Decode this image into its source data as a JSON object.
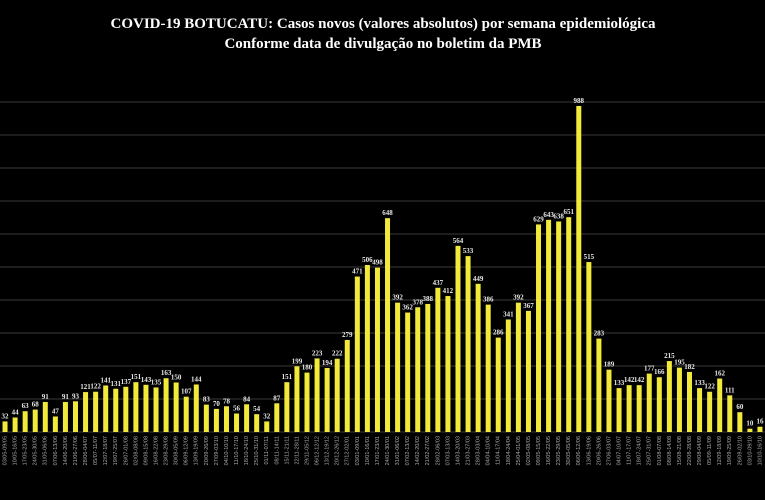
{
  "chart_data": {
    "type": "bar",
    "title": "COVID-19 BOTUCATU: Casos novos (valores absolutos) por semana epidemiológica",
    "subtitle": "Conforme data de divulgação no boletim da PMB",
    "categories": [
      "03/05-09/05",
      "10/05-16/05",
      "17/05-23/05",
      "24/05-30/05",
      "31/05-06/06",
      "07/06-13/06",
      "14/06-20/06",
      "21/06-27/06",
      "28/06-04/07",
      "05/07-11/07",
      "12/07-18/07",
      "19/07-25/07",
      "26/07-01/08",
      "02/08-08/08",
      "09/08-15/08",
      "16/08-22/08",
      "23/08-29/08",
      "30/08-05/09",
      "06/09-12/09",
      "13/09-19/09",
      "20/09-26/09",
      "27/09-03/10",
      "04/10-10/10",
      "11/10-17/10",
      "18/10-24/10",
      "25/10-31/10",
      "01/11-07/11",
      "08/11-14/11",
      "15/11-21/11",
      "22/11-28/11",
      "29/11-05/12",
      "06/12-12/12",
      "13/12-19/12",
      "20/12-26/12",
      "27/12-02/01",
      "03/01-09/01",
      "10/01-16/01",
      "17/01-23/01",
      "24/01-30/01",
      "31/01-06/02",
      "07/02-13/02",
      "14/02-20/02",
      "21/02-27/02",
      "28/02-06/03",
      "07/03-13/03",
      "14/03-20/03",
      "21/03-27/03",
      "28/03-03/04",
      "04/04-10/04",
      "11/04-17/04",
      "18/04-24/04",
      "25/04-01/05",
      "02/05-08/05",
      "09/05-15/05",
      "16/05-22/05",
      "23/05-29/05",
      "30/05-05/06",
      "06/06-12/06",
      "13/06-19/06",
      "20/06-26/06",
      "27/06-03/07",
      "04/07-10/07",
      "11/07-17/07",
      "18/07-24/07",
      "25/07-31/07",
      "01/08-07/08",
      "08/08-14/08",
      "15/08-21/08",
      "22/08-28/08",
      "29/08-04/09",
      "05/09-11/09",
      "12/09-18/09",
      "19/09-25/09",
      "26/09-02/10",
      "03/10-09/10",
      "10/10-16/10"
    ],
    "values": [
      32,
      44,
      63,
      68,
      91,
      47,
      91,
      93,
      121,
      122,
      141,
      131,
      137,
      151,
      143,
      135,
      163,
      150,
      107,
      144,
      83,
      70,
      78,
      56,
      84,
      54,
      32,
      87,
      151,
      199,
      180,
      223,
      194,
      222,
      279,
      471,
      506,
      498,
      648,
      392,
      362,
      378,
      388,
      437,
      412,
      564,
      533,
      449,
      386,
      286,
      341,
      392,
      367,
      629,
      643,
      638,
      651,
      988,
      515,
      283,
      189,
      133,
      142,
      142,
      177,
      166,
      215,
      195,
      182,
      133,
      122,
      162,
      111,
      60,
      10,
      16
    ],
    "color": "#f2ea3a",
    "ylim": [
      0,
      1000
    ],
    "yticks": [
      0,
      100,
      200,
      300,
      400,
      500,
      600,
      700,
      800,
      900,
      1000
    ],
    "grid": true
  }
}
